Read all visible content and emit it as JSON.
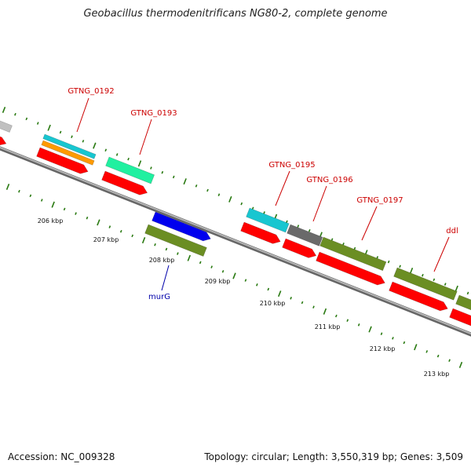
{
  "title": "Geobacillus thermodenitrificans NG80-2, complete genome",
  "footer": {
    "accession": "Accession: NC_009328",
    "summary": "Topology: circular; Length: 3,550,319 bp; Genes: 3,509"
  },
  "colors": {
    "backbone": "#8a8a8a",
    "tick": "#2a7a12",
    "cds_red": "#ff0000",
    "olive": "#6b8e23",
    "cyan": "#18c6d0",
    "orange": "#ff9a00",
    "mint": "#20f0a0",
    "grey": "#6a6a6a",
    "light_grey": "#c0c0c0",
    "blue": "#0000ee",
    "label_red": "#cc0000",
    "label_blue": "#0000aa"
  },
  "scale_labels": [
    "206 kbp",
    "207 kbp",
    "208 kbp",
    "209 kbp",
    "210 kbp",
    "211 kbp",
    "212 kbp",
    "213 kbp"
  ],
  "gene_labels": [
    {
      "id": "g0192",
      "text": "GTNG_0192",
      "color": "label_red"
    },
    {
      "id": "g0193",
      "text": "GTNG_0193",
      "color": "label_red"
    },
    {
      "id": "g0195",
      "text": "GTNG_0195",
      "color": "label_red"
    },
    {
      "id": "g0196",
      "text": "GTNG_0196",
      "color": "label_red"
    },
    {
      "id": "g0197",
      "text": "GTNG_0197",
      "color": "label_red"
    },
    {
      "id": "ddl",
      "text": "ddl",
      "color": "label_red"
    },
    {
      "id": "murG",
      "text": "murG",
      "color": "label_blue"
    }
  ]
}
